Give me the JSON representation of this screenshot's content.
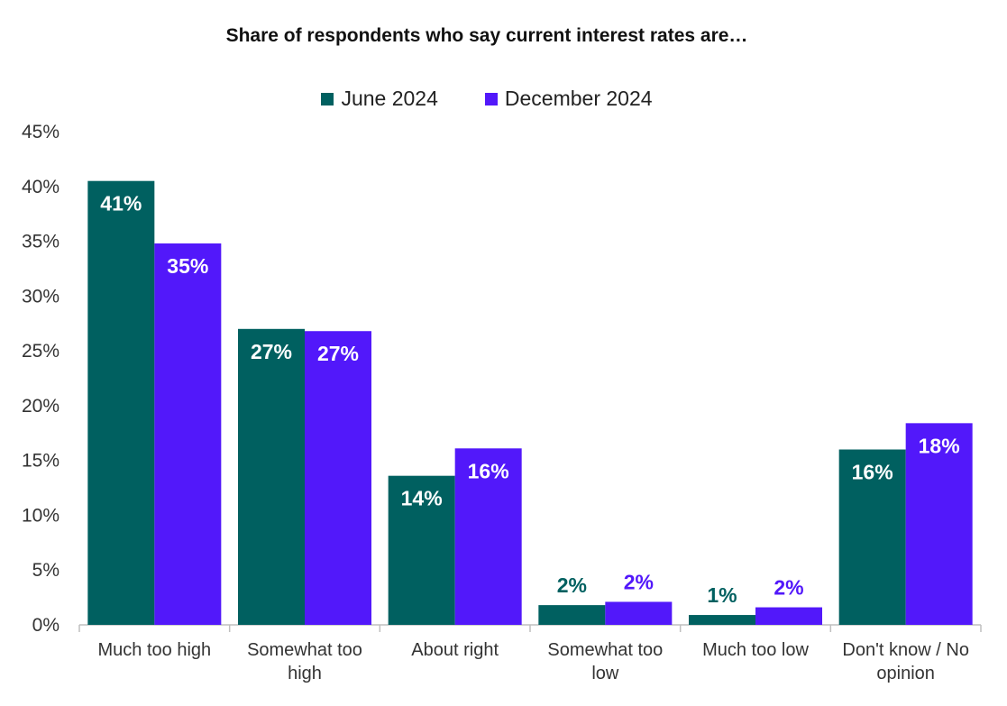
{
  "chart_data": {
    "type": "bar",
    "title": "Share of respondents who say current interest rates are…",
    "categories": [
      [
        "Much too high"
      ],
      [
        "Somewhat too",
        "high"
      ],
      [
        "About right"
      ],
      [
        "Somewhat too",
        "low"
      ],
      [
        "Much too low"
      ],
      [
        "Don't know / No",
        "opinion"
      ]
    ],
    "series": [
      {
        "name": "June 2024",
        "color": "#006060",
        "values": [
          40.5,
          27,
          13.6,
          1.8,
          0.9,
          16
        ],
        "labels": [
          "41%",
          "27%",
          "14%",
          "2%",
          "1%",
          "16%"
        ]
      },
      {
        "name": "December 2024",
        "color": "#5218FA",
        "values": [
          34.8,
          26.8,
          16.1,
          2.1,
          1.6,
          18.4
        ],
        "labels": [
          "35%",
          "27%",
          "16%",
          "2%",
          "2%",
          "18%"
        ]
      }
    ],
    "ylim": [
      0,
      45
    ],
    "yticks": [
      0,
      5,
      10,
      15,
      20,
      25,
      30,
      35,
      40,
      45
    ],
    "ytick_labels": [
      "0%",
      "5%",
      "10%",
      "15%",
      "20%",
      "25%",
      "30%",
      "35%",
      "40%",
      "45%"
    ],
    "legend_position": "top-center",
    "grid": false
  }
}
